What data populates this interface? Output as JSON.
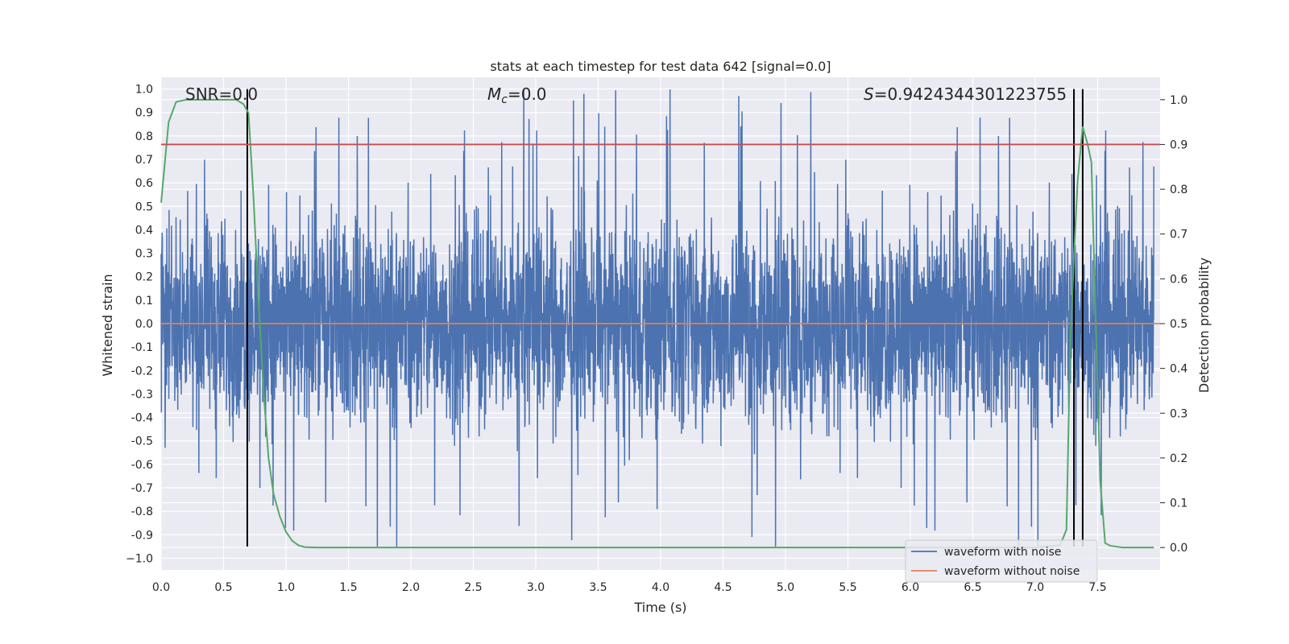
{
  "chart_data": {
    "type": "line",
    "title": "stats at each timestep for test data 642 [signal=0.0]",
    "xlabel": "Time (s)",
    "ylabel": "Whitened strain",
    "y2label": "Detection probability",
    "xlim": [
      0.0,
      8.0
    ],
    "ylim": [
      -1.05,
      1.05
    ],
    "y2lim": [
      -0.05,
      1.05
    ],
    "xticks": [
      0.0,
      0.5,
      1.0,
      1.5,
      2.0,
      2.5,
      3.0,
      3.5,
      4.0,
      4.5,
      5.0,
      5.5,
      6.0,
      6.5,
      7.0,
      7.5
    ],
    "xtick_labels": [
      "0.0",
      "0.5",
      "1.0",
      "1.5",
      "2.0",
      "2.5",
      "3.0",
      "3.5",
      "4.0",
      "4.5",
      "5.0",
      "5.5",
      "6.0",
      "6.5",
      "7.0",
      "7.5"
    ],
    "yticks": [
      1.0,
      0.9,
      0.8,
      0.7,
      0.6,
      0.5,
      0.4,
      0.3,
      0.2,
      0.1,
      0.0,
      -0.1,
      -0.2,
      -0.3,
      -0.4,
      -0.5,
      -0.6,
      -0.7,
      -0.8,
      -0.9,
      -1.0
    ],
    "ytick_labels": [
      "1.0",
      "0.9",
      "0.8",
      "0.7",
      "0.6",
      "0.5",
      "0.4",
      "0.3",
      "0.2",
      "0.1",
      "0.0",
      "-0.1",
      "-0.2",
      "-0.3",
      "-0.4",
      "-0.5",
      "-0.6",
      "-0.7",
      "-0.8",
      "-0.9",
      "−1.0"
    ],
    "y2ticks": [
      1.0,
      0.9,
      0.8,
      0.7,
      0.6,
      0.5,
      0.4,
      0.3,
      0.2,
      0.1,
      0.0
    ],
    "y2tick_labels": [
      "1.0",
      "0.9",
      "0.8",
      "0.7",
      "0.6",
      "0.5",
      "0.4",
      "0.3",
      "0.2",
      "0.1",
      "0.0"
    ],
    "grid": true,
    "legend_position": "bottom-right",
    "annotations": {
      "snr": "SNR=0.0",
      "mc_symbol": "M",
      "mc_sub": "c",
      "mc_value": "=0.0",
      "s_symbol": "S",
      "s_value": "=0.9424344301223755"
    },
    "series": [
      {
        "name": "waveform with noise",
        "color": "#4c72b0",
        "axis": "left",
        "style": "noise",
        "amplitude_envelope": [
          -0.95,
          1.0
        ],
        "typical_range": [
          -0.5,
          0.6
        ]
      },
      {
        "name": "waveform without noise",
        "color": "#dd8452",
        "axis": "left",
        "style": "flat",
        "value": 0.0
      },
      {
        "color": "#55a868",
        "axis": "right",
        "x": [
          0.0,
          0.06,
          0.12,
          0.2,
          0.3,
          0.4,
          0.5,
          0.6,
          0.66,
          0.7,
          0.74,
          0.78,
          0.82,
          0.86,
          0.9,
          0.95,
          1.0,
          1.05,
          1.1,
          1.15,
          1.25,
          1.5,
          2.0,
          3.0,
          4.0,
          5.0,
          6.0,
          7.0,
          7.2,
          7.25,
          7.28,
          7.31,
          7.34,
          7.38,
          7.42,
          7.45,
          7.48,
          7.52,
          7.56,
          7.6,
          7.7,
          7.8,
          7.95
        ],
        "y": [
          0.77,
          0.95,
          0.995,
          1.0,
          1.0,
          1.0,
          1.0,
          1.0,
          0.99,
          0.97,
          0.78,
          0.55,
          0.35,
          0.2,
          0.12,
          0.07,
          0.035,
          0.015,
          0.005,
          0.001,
          0.0,
          0.0,
          0.0,
          0.0,
          0.0,
          0.0,
          0.0,
          0.0,
          0.005,
          0.04,
          0.45,
          0.65,
          0.82,
          0.94,
          0.9,
          0.86,
          0.55,
          0.15,
          0.01,
          0.004,
          0.0,
          0.0,
          0.0
        ]
      },
      {
        "color": "#c44e52",
        "axis": "right",
        "style": "hline",
        "value": 0.9
      }
    ],
    "vlines": [
      0.69,
      7.31,
      7.38
    ],
    "vline_color": "#000000"
  }
}
